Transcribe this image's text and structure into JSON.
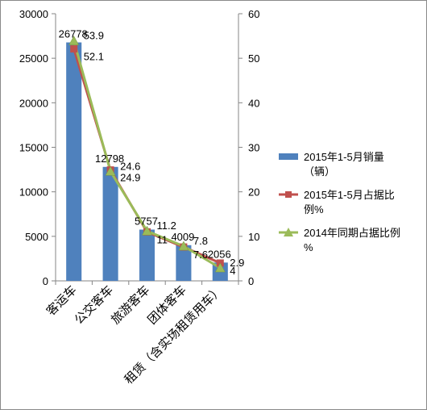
{
  "chart_data": {
    "type": "bar",
    "categories": [
      "客运车",
      "公交客车",
      "旅游客车",
      "团体客车",
      "租赁（含实场租赁用车）"
    ],
    "series": [
      {
        "name": "2015年1-5月销量（辆）",
        "type": "bar",
        "axis": "left",
        "color": "#4F81BD",
        "values": [
          26778,
          12798,
          5757,
          4009,
          2056
        ],
        "labels": [
          "26778",
          "12798",
          "5757",
          "4009",
          "2056"
        ]
      },
      {
        "name": "2015年1-5月占据比例%",
        "type": "line",
        "axis": "right",
        "color": "#C0504D",
        "marker": "square",
        "values": [
          52.1,
          24.9,
          11,
          7.6,
          4
        ],
        "labels": [
          "52.1",
          "24.9",
          "11",
          "7.6",
          "4"
        ]
      },
      {
        "name": "2014年同期占据比例%",
        "type": "line",
        "axis": "right",
        "color": "#9BBB59",
        "marker": "triangle",
        "values": [
          53.9,
          24.6,
          11.2,
          7.8,
          2.9
        ],
        "labels": [
          "53.9",
          "24.6",
          "11.2",
          "7.8",
          "2.9"
        ]
      }
    ],
    "y_left": {
      "min": 0,
      "max": 30000,
      "ticks": [
        0,
        5000,
        10000,
        15000,
        20000,
        25000,
        30000
      ]
    },
    "y_right": {
      "min": 0,
      "max": 60,
      "ticks": [
        0,
        10,
        20,
        30,
        40,
        50,
        60
      ]
    },
    "grid": false,
    "legend_position": "right",
    "legend": [
      {
        "lines": [
          "2015年1-5月销量",
          "（辆）"
        ],
        "kind": "bar",
        "color": "#4F81BD"
      },
      {
        "lines": [
          "2015年1-5月占据比",
          "例%"
        ],
        "kind": "line-square",
        "color": "#C0504D"
      },
      {
        "lines": [
          "2014年同期占据比例",
          "%"
        ],
        "kind": "line-triangle",
        "color": "#9BBB59"
      }
    ]
  }
}
